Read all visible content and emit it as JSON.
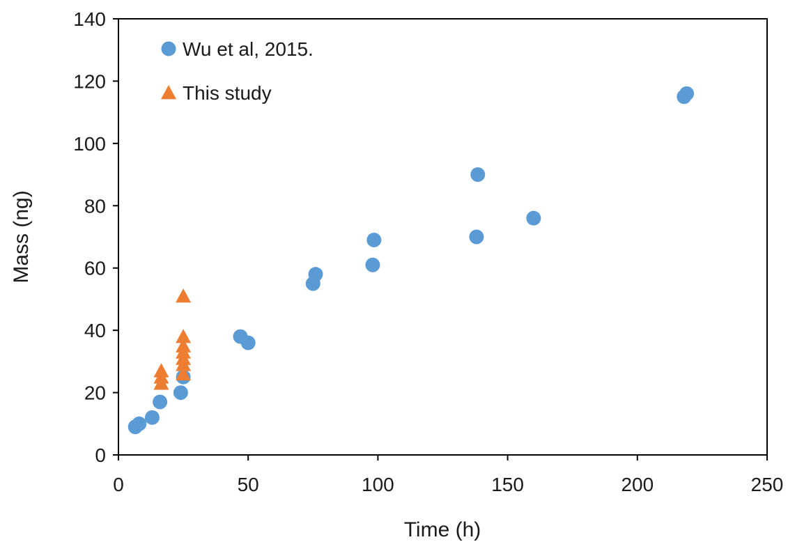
{
  "chart_data": {
    "type": "scatter",
    "title": "",
    "xlabel": "Time (h)",
    "ylabel": "Mass (ng)",
    "xlim": [
      0,
      250
    ],
    "ylim": [
      0,
      140
    ],
    "xticks": [
      0,
      50,
      100,
      150,
      200,
      250
    ],
    "yticks": [
      0,
      20,
      40,
      60,
      80,
      100,
      120,
      140
    ],
    "grid": false,
    "legend_position": "top-left",
    "series": [
      {
        "name": "Wu et al, 2015.",
        "marker": "circle",
        "color": "#5B9BD5",
        "points": [
          {
            "x": 6.5,
            "y": 9
          },
          {
            "x": 8,
            "y": 10
          },
          {
            "x": 13,
            "y": 12
          },
          {
            "x": 16,
            "y": 17
          },
          {
            "x": 24,
            "y": 20
          },
          {
            "x": 25,
            "y": 25
          },
          {
            "x": 47,
            "y": 38
          },
          {
            "x": 50,
            "y": 36
          },
          {
            "x": 75,
            "y": 55
          },
          {
            "x": 76,
            "y": 58
          },
          {
            "x": 98,
            "y": 61
          },
          {
            "x": 98.5,
            "y": 69
          },
          {
            "x": 138,
            "y": 70
          },
          {
            "x": 138.5,
            "y": 90
          },
          {
            "x": 160,
            "y": 76
          },
          {
            "x": 218,
            "y": 115
          },
          {
            "x": 219,
            "y": 116
          }
        ]
      },
      {
        "name": "This study",
        "marker": "triangle",
        "color": "#ED7D31",
        "points": [
          {
            "x": 16.5,
            "y": 23
          },
          {
            "x": 16.5,
            "y": 25
          },
          {
            "x": 16.5,
            "y": 27
          },
          {
            "x": 25,
            "y": 26
          },
          {
            "x": 25,
            "y": 29
          },
          {
            "x": 25,
            "y": 31
          },
          {
            "x": 25,
            "y": 33
          },
          {
            "x": 25,
            "y": 35
          },
          {
            "x": 25,
            "y": 38
          },
          {
            "x": 25,
            "y": 51
          }
        ]
      }
    ]
  }
}
